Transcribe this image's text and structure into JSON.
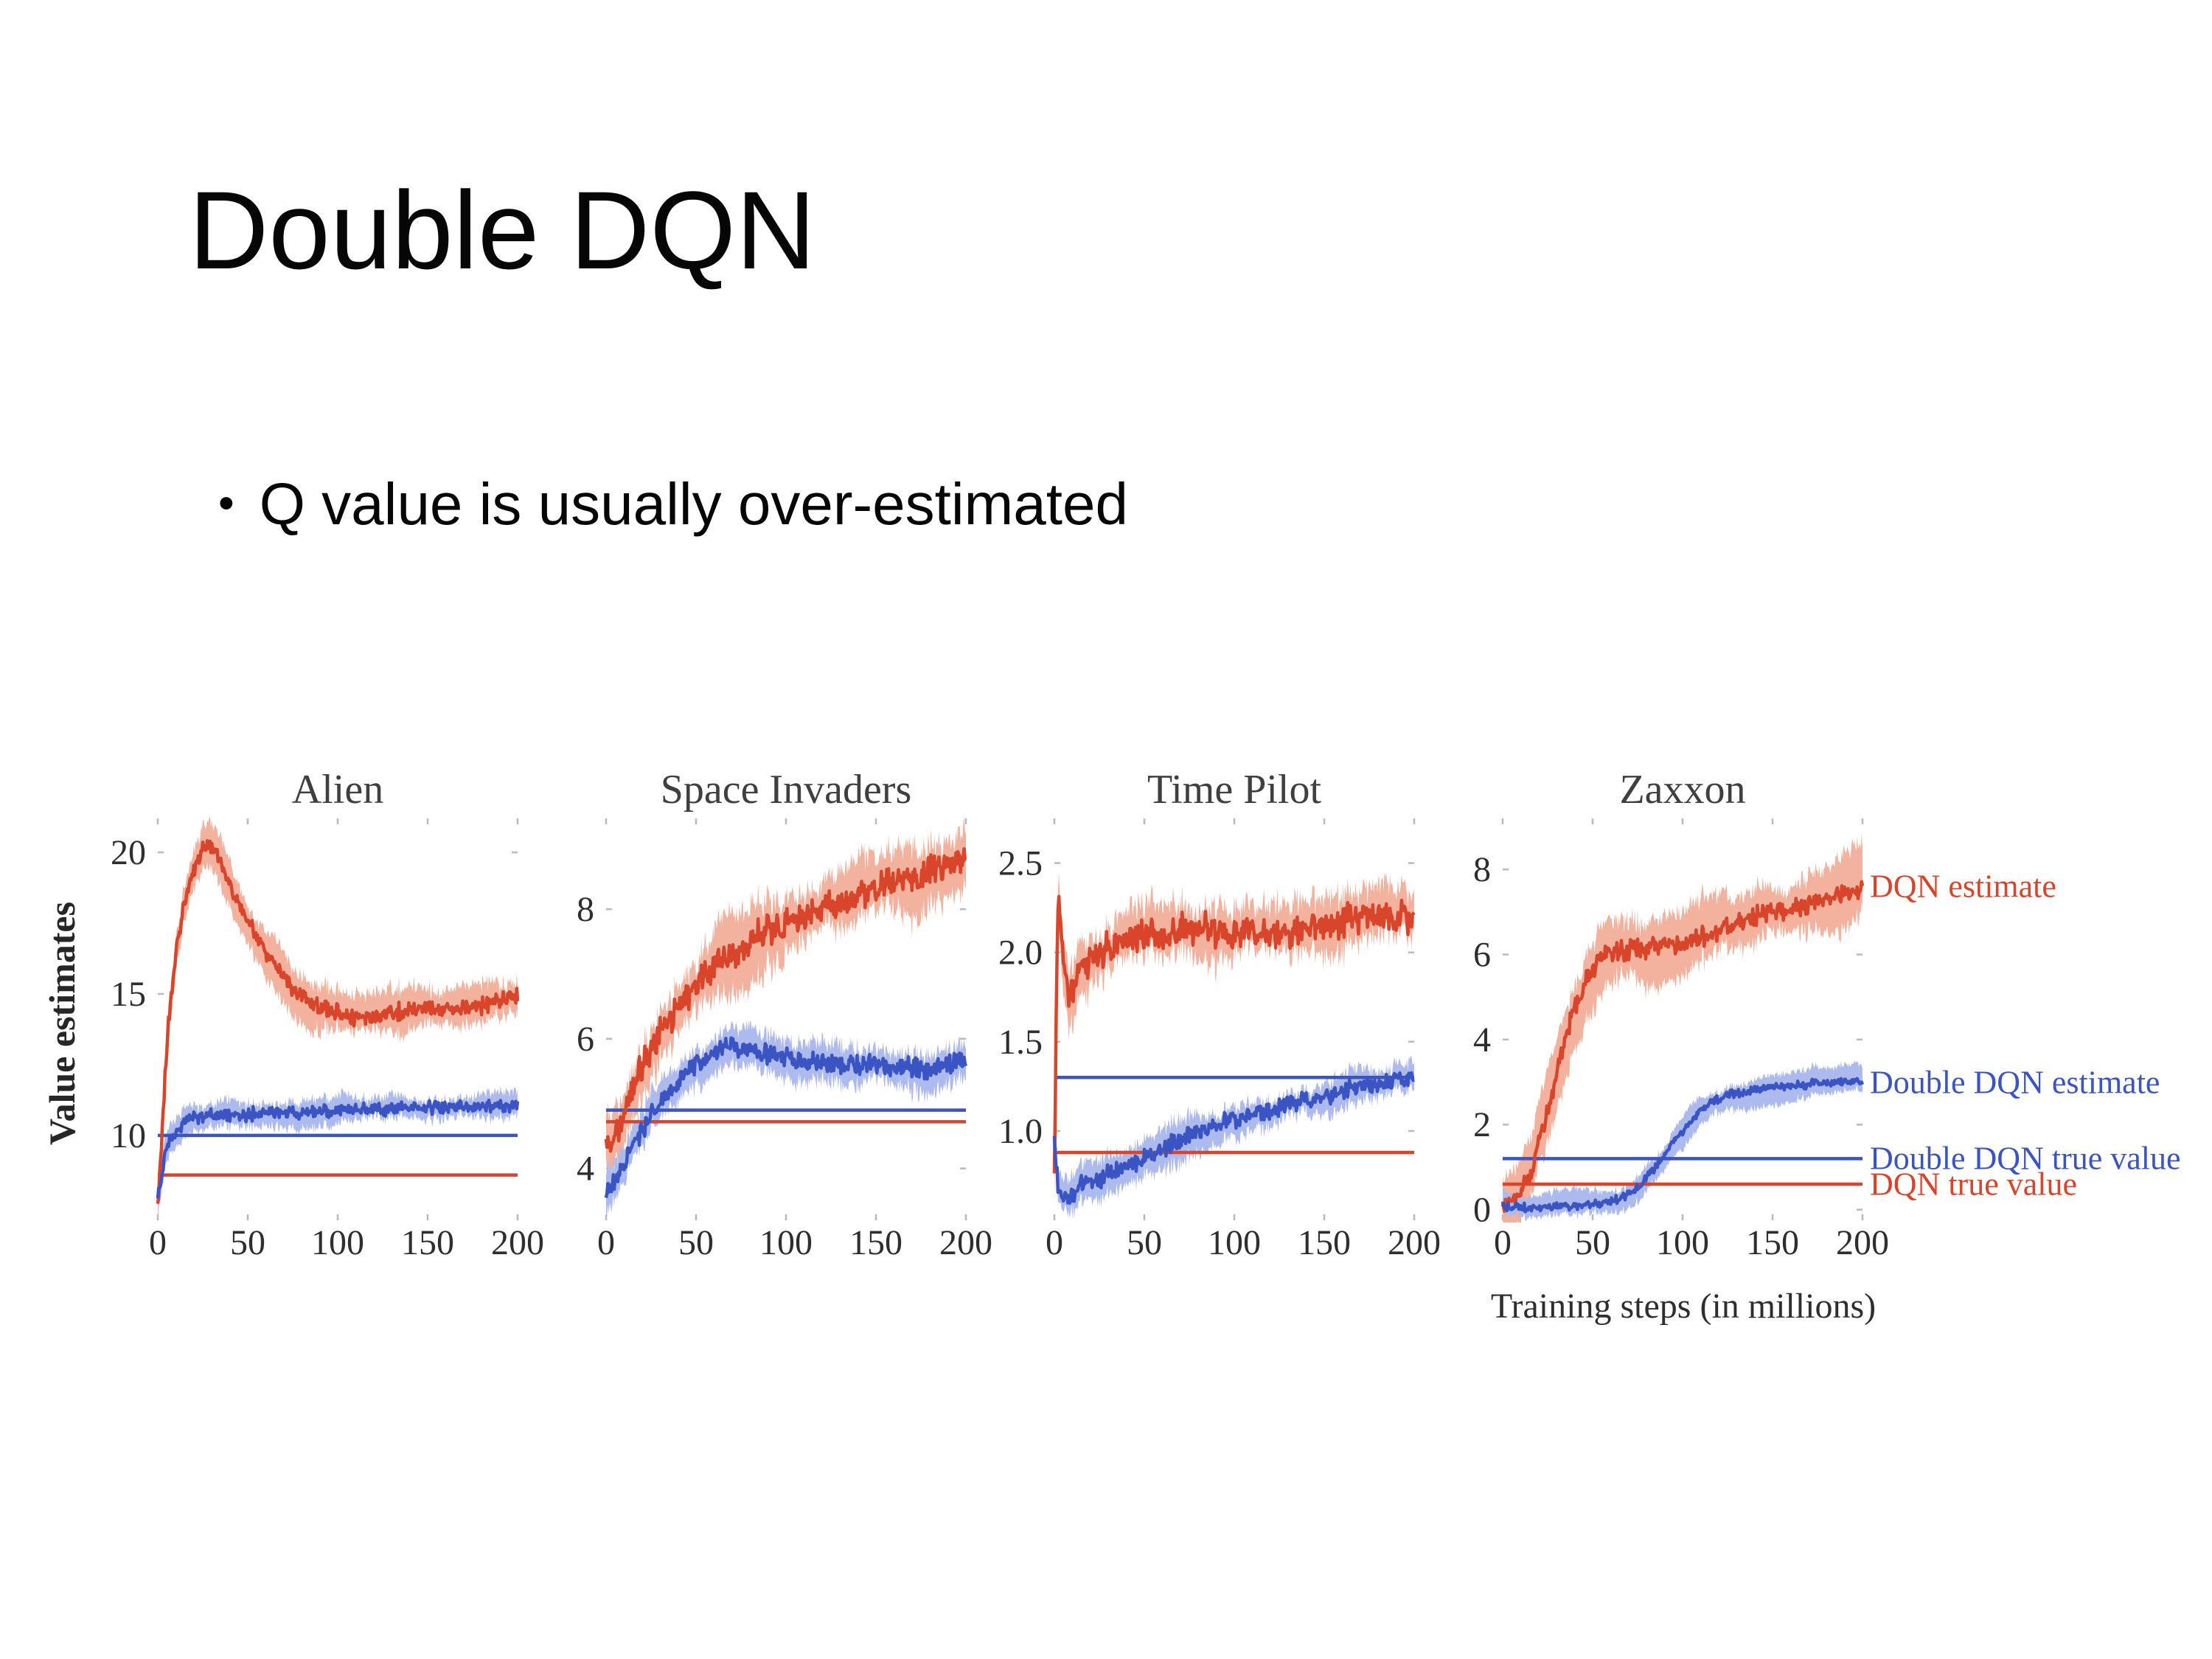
{
  "slide": {
    "title": "Double DQN",
    "bullet_marker": "•",
    "bullet": "Q value is usually over-estimated"
  },
  "figure": {
    "y_label": "Value estimates",
    "x_label": "Training steps (in millions)",
    "colors": {
      "dqn": "#d8452a",
      "dqn_band": "#f2b29e",
      "ddqn": "#3b54c4",
      "ddqn_band": "#adbaee",
      "axis_text": "#2e2e2e",
      "title_text": "#3f3f3f",
      "tick_mark": "#b9b9b9"
    },
    "legend": [
      {
        "label": "DQN estimate",
        "color": "#d8452a",
        "ref": "series-0-end"
      },
      {
        "label": "Double DQN estimate",
        "color": "#3b54c4",
        "ref": "series-1-end"
      },
      {
        "label": "Double DQN true value",
        "color": "#3b54c4",
        "ref": "hline-0"
      },
      {
        "label": "DQN true value",
        "color": "#d8452a",
        "ref": "hline-1"
      }
    ]
  },
  "chart_data": [
    {
      "type": "line",
      "title": "Alien",
      "xlim": [
        0,
        200
      ],
      "xticks": [
        0,
        50,
        100,
        150,
        200
      ],
      "xtick_labels": [
        "0",
        "50",
        "100",
        "150",
        "200"
      ],
      "ylim": [
        7.0,
        21.2
      ],
      "yticks": [
        10,
        15,
        20
      ],
      "ytick_labels": [
        "10",
        "15",
        "20"
      ],
      "series": [
        {
          "name": "DQN estimate",
          "color": "#d8452a",
          "band_color": "#f2b29e",
          "noise": 0.35,
          "band": 0.8,
          "points": [
            [
              0,
              7.4
            ],
            [
              3,
              11.0
            ],
            [
              6,
              14.0
            ],
            [
              10,
              16.5
            ],
            [
              14,
              18.0
            ],
            [
              18,
              19.0
            ],
            [
              25,
              20.2
            ],
            [
              30,
              20.3
            ],
            [
              35,
              19.6
            ],
            [
              45,
              18.2
            ],
            [
              55,
              17.0
            ],
            [
              65,
              16.0
            ],
            [
              75,
              15.2
            ],
            [
              90,
              14.5
            ],
            [
              105,
              14.2
            ],
            [
              120,
              14.2
            ],
            [
              135,
              14.4
            ],
            [
              150,
              14.5
            ],
            [
              165,
              14.5
            ],
            [
              180,
              14.6
            ],
            [
              200,
              14.9
            ]
          ]
        },
        {
          "name": "Double DQN estimate",
          "color": "#3b54c4",
          "band_color": "#adbaee",
          "noise": 0.28,
          "band": 0.45,
          "points": [
            [
              0,
              7.8
            ],
            [
              4,
              9.3
            ],
            [
              8,
              10.0
            ],
            [
              15,
              10.5
            ],
            [
              25,
              10.7
            ],
            [
              40,
              10.7
            ],
            [
              60,
              10.8
            ],
            [
              80,
              10.8
            ],
            [
              100,
              10.9
            ],
            [
              120,
              10.9
            ],
            [
              140,
              11.0
            ],
            [
              160,
              11.0
            ],
            [
              180,
              11.0
            ],
            [
              200,
              11.1
            ]
          ]
        }
      ],
      "hlines": [
        {
          "name": "Double DQN true value",
          "color": "#3b54c4",
          "y": 10.0
        },
        {
          "name": "DQN true value",
          "color": "#d8452a",
          "y": 8.6
        }
      ]
    },
    {
      "type": "line",
      "title": "Space Invaders",
      "xlim": [
        0,
        200
      ],
      "xticks": [
        0,
        50,
        100,
        150,
        200
      ],
      "xtick_labels": [
        "0",
        "50",
        "100",
        "150",
        "200"
      ],
      "ylim": [
        3.2,
        9.4
      ],
      "yticks": [
        4,
        6,
        8
      ],
      "ytick_labels": [
        "4",
        "6",
        "8"
      ],
      "series": [
        {
          "name": "DQN estimate",
          "color": "#d8452a",
          "band_color": "#f2b29e",
          "noise": 0.3,
          "band": 0.55,
          "points": [
            [
              0,
              4.3
            ],
            [
              5,
              4.5
            ],
            [
              10,
              4.9
            ],
            [
              20,
              5.6
            ],
            [
              30,
              6.1
            ],
            [
              40,
              6.5
            ],
            [
              55,
              7.0
            ],
            [
              70,
              7.3
            ],
            [
              85,
              7.6
            ],
            [
              100,
              7.8
            ],
            [
              115,
              8.0
            ],
            [
              130,
              8.1
            ],
            [
              145,
              8.3
            ],
            [
              160,
              8.4
            ],
            [
              175,
              8.5
            ],
            [
              200,
              8.8
            ]
          ]
        },
        {
          "name": "Double DQN estimate",
          "color": "#3b54c4",
          "band_color": "#adbaee",
          "noise": 0.18,
          "band": 0.3,
          "points": [
            [
              0,
              3.6
            ],
            [
              5,
              3.8
            ],
            [
              10,
              4.1
            ],
            [
              20,
              4.6
            ],
            [
              30,
              5.0
            ],
            [
              45,
              5.5
            ],
            [
              60,
              5.8
            ],
            [
              70,
              5.9
            ],
            [
              85,
              5.8
            ],
            [
              100,
              5.7
            ],
            [
              120,
              5.6
            ],
            [
              140,
              5.6
            ],
            [
              160,
              5.6
            ],
            [
              180,
              5.5
            ],
            [
              200,
              5.7
            ]
          ]
        }
      ],
      "hlines": [
        {
          "name": "Double DQN true value",
          "color": "#3b54c4",
          "y": 4.9
        },
        {
          "name": "DQN true value",
          "color": "#d8452a",
          "y": 4.72
        }
      ]
    },
    {
      "type": "line",
      "title": "Time Pilot",
      "xlim": [
        0,
        200
      ],
      "xticks": [
        0,
        50,
        100,
        150,
        200
      ],
      "xtick_labels": [
        "0",
        "50",
        "100",
        "150",
        "200"
      ],
      "ylim": [
        0.5,
        2.75
      ],
      "yticks": [
        1.0,
        1.5,
        2.0,
        2.5
      ],
      "ytick_labels": [
        "1.0",
        "1.5",
        "2.0",
        "2.5"
      ],
      "series": [
        {
          "name": "DQN estimate",
          "color": "#d8452a",
          "band_color": "#f2b29e",
          "noise": 0.11,
          "band": 0.16,
          "points": [
            [
              0,
              0.85
            ],
            [
              2,
              2.3
            ],
            [
              4,
              2.1
            ],
            [
              6,
              1.85
            ],
            [
              9,
              1.75
            ],
            [
              13,
              1.9
            ],
            [
              18,
              1.95
            ],
            [
              25,
              2.0
            ],
            [
              35,
              2.05
            ],
            [
              50,
              2.1
            ],
            [
              65,
              2.1
            ],
            [
              80,
              2.15
            ],
            [
              95,
              2.1
            ],
            [
              110,
              2.12
            ],
            [
              130,
              2.12
            ],
            [
              150,
              2.15
            ],
            [
              170,
              2.2
            ],
            [
              200,
              2.2
            ]
          ]
        },
        {
          "name": "Double DQN estimate",
          "color": "#3b54c4",
          "band_color": "#adbaee",
          "noise": 0.06,
          "band": 0.1,
          "points": [
            [
              0,
              0.95
            ],
            [
              2,
              0.7
            ],
            [
              5,
              0.62
            ],
            [
              10,
              0.65
            ],
            [
              15,
              0.7
            ],
            [
              25,
              0.73
            ],
            [
              35,
              0.78
            ],
            [
              50,
              0.85
            ],
            [
              65,
              0.93
            ],
            [
              80,
              1.0
            ],
            [
              95,
              1.05
            ],
            [
              110,
              1.1
            ],
            [
              125,
              1.13
            ],
            [
              140,
              1.17
            ],
            [
              155,
              1.2
            ],
            [
              170,
              1.25
            ],
            [
              185,
              1.28
            ],
            [
              200,
              1.3
            ]
          ]
        }
      ],
      "hlines": [
        {
          "name": "Double DQN true value",
          "color": "#3b54c4",
          "y": 1.3
        },
        {
          "name": "DQN true value",
          "color": "#d8452a",
          "y": 0.88
        }
      ]
    },
    {
      "type": "line",
      "title": "Zaxxon",
      "xlim": [
        0,
        200
      ],
      "xticks": [
        0,
        50,
        100,
        150,
        200
      ],
      "xtick_labels": [
        "0",
        "50",
        "100",
        "150",
        "200"
      ],
      "ylim": [
        -0.25,
        9.2
      ],
      "yticks": [
        0,
        2,
        4,
        6,
        8
      ],
      "ytick_labels": [
        "0",
        "2",
        "4",
        "6",
        "8"
      ],
      "series": [
        {
          "name": "DQN estimate",
          "color": "#d8452a",
          "band_color": "#f2b29e",
          "noise": 0.28,
          "band": 0.85,
          "points": [
            [
              0,
              0.1
            ],
            [
              8,
              0.3
            ],
            [
              15,
              0.8
            ],
            [
              22,
              1.8
            ],
            [
              30,
              3.2
            ],
            [
              38,
              4.5
            ],
            [
              46,
              5.4
            ],
            [
              55,
              5.9
            ],
            [
              65,
              6.1
            ],
            [
              75,
              6.1
            ],
            [
              85,
              6.2
            ],
            [
              95,
              6.2
            ],
            [
              110,
              6.4
            ],
            [
              125,
              6.6
            ],
            [
              140,
              6.9
            ],
            [
              155,
              7.0
            ],
            [
              170,
              7.2
            ],
            [
              185,
              7.4
            ],
            [
              200,
              7.6
            ]
          ]
        },
        {
          "name": "Double DQN estimate",
          "color": "#3b54c4",
          "band_color": "#adbaee",
          "noise": 0.12,
          "band": 0.35,
          "points": [
            [
              0,
              0.05
            ],
            [
              20,
              0.07
            ],
            [
              40,
              0.1
            ],
            [
              55,
              0.15
            ],
            [
              65,
              0.25
            ],
            [
              75,
              0.5
            ],
            [
              85,
              1.0
            ],
            [
              95,
              1.6
            ],
            [
              105,
              2.1
            ],
            [
              115,
              2.5
            ],
            [
              125,
              2.7
            ],
            [
              140,
              2.8
            ],
            [
              155,
              2.9
            ],
            [
              170,
              2.95
            ],
            [
              185,
              3.0
            ],
            [
              200,
              3.0
            ]
          ]
        }
      ],
      "hlines": [
        {
          "name": "Double DQN true value",
          "color": "#3b54c4",
          "y": 1.2
        },
        {
          "name": "DQN true value",
          "color": "#d8452a",
          "y": 0.6
        }
      ]
    }
  ]
}
